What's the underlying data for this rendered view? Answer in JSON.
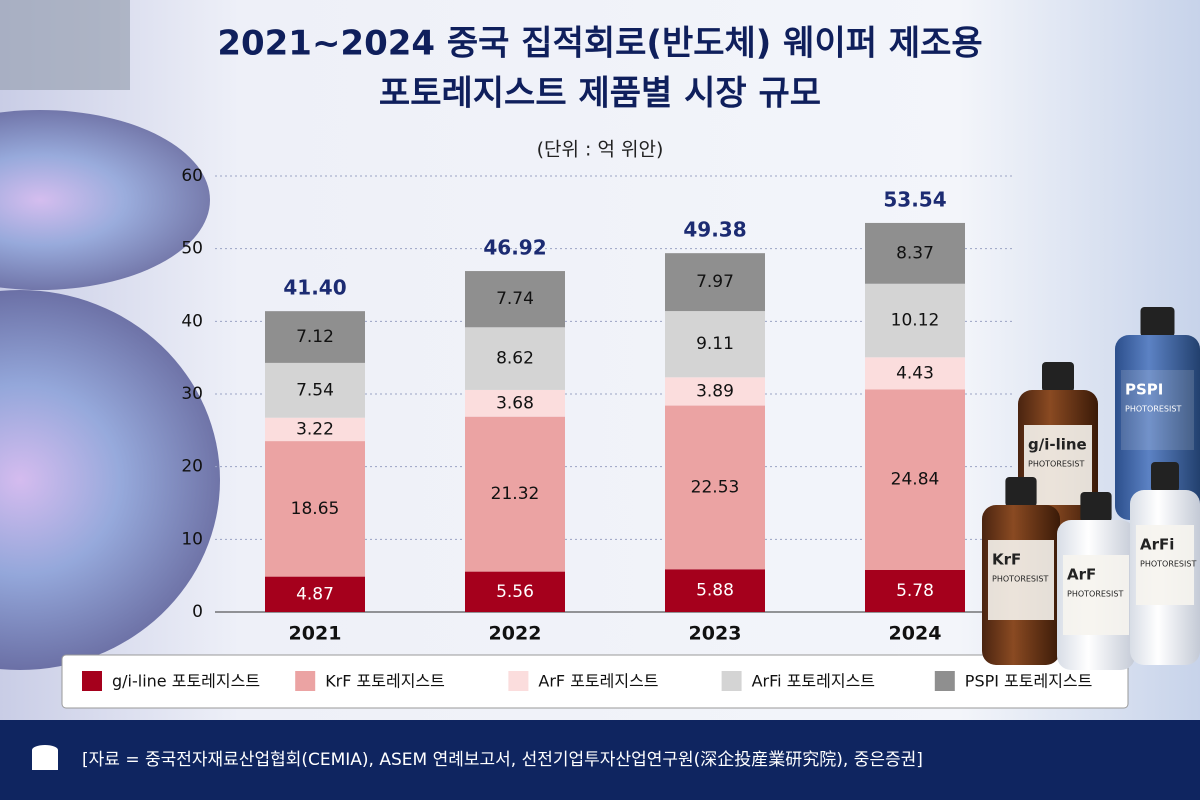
{
  "chart_data": {
    "type": "stacked-bar",
    "title": [
      "2021~2024 중국 집적회로(반도체) 웨이퍼 제조용",
      "포토레지스트 제품별 시장 규모"
    ],
    "subtitle": "(단위 : 억 위안)",
    "categories": [
      "2021",
      "2022",
      "2023",
      "2024"
    ],
    "series": [
      {
        "name": "g/i-line 포토레지스트",
        "color": "#a5001c",
        "values": [
          4.87,
          5.56,
          5.88,
          5.78
        ]
      },
      {
        "name": "KrF 포토레지스트",
        "color": "#eba3a3",
        "values": [
          18.65,
          21.32,
          22.53,
          24.84
        ]
      },
      {
        "name": "ArF 포토레지스트",
        "color": "#fbdddd",
        "values": [
          3.22,
          3.68,
          3.89,
          4.43
        ]
      },
      {
        "name": "ArFi 포토레지스트",
        "color": "#d4d4d4",
        "values": [
          7.54,
          8.62,
          9.11,
          10.12
        ]
      },
      {
        "name": "PSPI 포토레지스트",
        "color": "#8f8f8f",
        "values": [
          7.12,
          7.74,
          7.97,
          8.37
        ]
      }
    ],
    "totals": {
      "values": [
        41.4,
        46.92,
        49.38,
        53.54
      ],
      "value_labels": [
        "41.40",
        "46.92",
        "49.38",
        "53.54"
      ],
      "color": "#1c2b72"
    },
    "ylim": [
      0,
      60
    ],
    "yticks": [
      0,
      10,
      20,
      30,
      40,
      50,
      60
    ],
    "grid": true,
    "legend": "bottom",
    "bottles": [
      {
        "name": "PSPI",
        "caption": "PHOTORESIST"
      },
      {
        "name": "g/i-line",
        "caption": "PHOTORESIST"
      },
      {
        "name": "KrF",
        "caption": "PHOTORESIST"
      },
      {
        "name": "ArF",
        "caption": "PHOTORESIST"
      },
      {
        "name": "ArFi",
        "caption": "PHOTORESIST"
      }
    ],
    "source": "[자료 = 중국전자재료산업협회(CEMIA), ASEM 연례보고서, 선전기업투자산업연구원(深企投産業研究院), 중은증권]"
  }
}
